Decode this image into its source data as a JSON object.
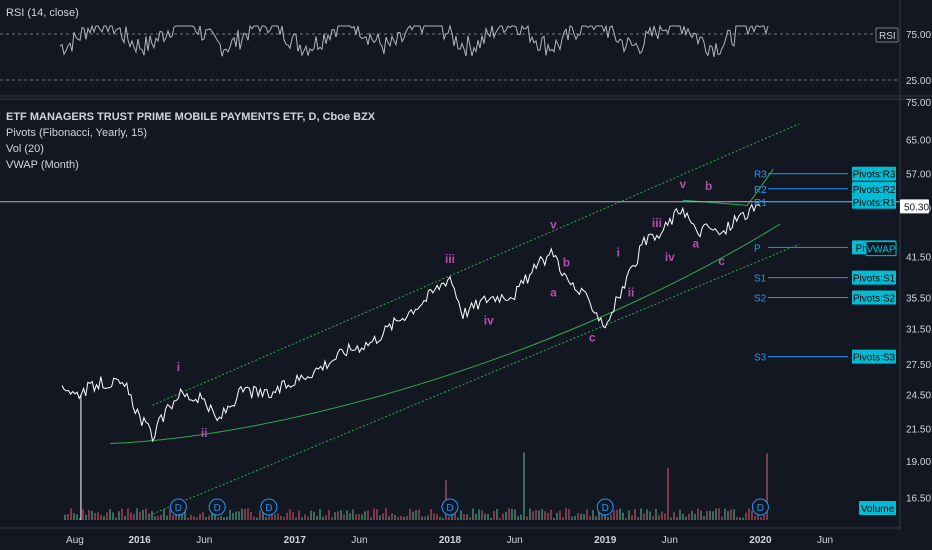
{
  "chart_data": {
    "type": "line",
    "title": "ETF MANAGERS TRUST PRIME MOBILE PAYMENTS ETF, D, Cboe BZX",
    "indicators": [
      "Pivots (Fibonacci, Yearly, 15)",
      "Vol (20)",
      "VWAP (Month)"
    ],
    "x_ticks": [
      "Aug",
      "2016",
      "Jun",
      "2017",
      "Jun",
      "2018",
      "Jun",
      "2019",
      "Jun",
      "2020",
      "Jun"
    ],
    "y_ticks": [
      "75.00",
      "65.00",
      "57.00",
      "50.00",
      "41.50",
      "35.50",
      "31.50",
      "27.50",
      "24.50",
      "21.50",
      "19.00",
      "16.50"
    ],
    "last_price": "50.30",
    "ylim": [
      15.5,
      75
    ],
    "y_scale": "log",
    "price_series": {
      "name": "",
      "x": [
        "2015-07",
        "2015-08",
        "2015-10",
        "2015-11",
        "2015-12",
        "2016-01",
        "2016-02",
        "2016-04",
        "2016-06",
        "2016-07",
        "2016-09",
        "2016-11",
        "2017-01",
        "2017-03",
        "2017-05",
        "2017-07",
        "2017-09",
        "2017-11",
        "2018-01",
        "2018-02",
        "2018-04",
        "2018-06",
        "2018-08",
        "2018-09",
        "2018-10",
        "2018-12",
        "2019-01",
        "2019-03",
        "2019-04",
        "2019-05",
        "2019-07",
        "2019-08",
        "2019-09",
        "2019-10",
        "2019-11",
        "2020-01"
      ],
      "values": [
        25.6,
        24.5,
        25.6,
        25.6,
        25.0,
        22.5,
        20.9,
        24.6,
        23.9,
        22.1,
        24.9,
        24.4,
        25.8,
        27.2,
        29.0,
        30.0,
        32.6,
        35.1,
        38.5,
        33.4,
        35.5,
        36.0,
        40.5,
        42.3,
        38.0,
        34.5,
        31.8,
        39.0,
        43.8,
        44.5,
        50.3,
        45.5,
        46.5,
        45.0,
        47.8,
        50.3
      ]
    },
    "vwap": {
      "name": "VWAP",
      "value": 42.8
    },
    "pivots": [
      {
        "label": "R3",
        "value": 57.0,
        "tag": "Pivots:R3"
      },
      {
        "label": "R2",
        "value": 53.8,
        "tag": "Pivots:R2"
      },
      {
        "label": "R1",
        "value": 51.2,
        "tag": "Pivots:R1"
      },
      {
        "label": "P",
        "value": 43.0,
        "tag": "Pivots:P"
      },
      {
        "label": "S1",
        "value": 38.3,
        "tag": "Pivots:S1"
      },
      {
        "label": "S2",
        "value": 35.5,
        "tag": "Pivots:S2"
      },
      {
        "label": "S3",
        "value": 28.3,
        "tag": "Pivots:S3"
      }
    ],
    "wave_labels": [
      {
        "text": "i",
        "x": "2016-04",
        "y": 26.8
      },
      {
        "text": "ii",
        "x": "2016-06",
        "y": 20.8
      },
      {
        "text": "iii",
        "x": "2018-01",
        "y": 40.5
      },
      {
        "text": "iv",
        "x": "2018-04",
        "y": 32.0
      },
      {
        "text": "v",
        "x": "2018-09",
        "y": 46.2
      },
      {
        "text": "b",
        "x": "2018-10",
        "y": 40.0
      },
      {
        "text": "a",
        "x": "2018-09",
        "y": 35.6
      },
      {
        "text": "c",
        "x": "2018-12",
        "y": 30.0
      },
      {
        "text": "i",
        "x": "2019-02",
        "y": 41.5
      },
      {
        "text": "ii",
        "x": "2019-03",
        "y": 35.6
      },
      {
        "text": "iii",
        "x": "2019-05",
        "y": 46.5
      },
      {
        "text": "iv",
        "x": "2019-06",
        "y": 40.8
      },
      {
        "text": "v",
        "x": "2019-07",
        "y": 54.0
      },
      {
        "text": "b",
        "x": "2019-09",
        "y": 53.6
      },
      {
        "text": "a",
        "x": "2019-08",
        "y": 43.0
      },
      {
        "text": "c",
        "x": "2019-10",
        "y": 40.2
      }
    ],
    "dividends": [
      "2016-04",
      "2016-07",
      "2016-11",
      "2018-01",
      "2019-01",
      "2020-01"
    ],
    "dividend_label": "D",
    "rsi": {
      "title": "RSI (14, close)",
      "tag": "RSI",
      "upper": "75.00",
      "lower": "25.00"
    },
    "volume_tag": "Volume"
  },
  "ui": {
    "bg": "#131722",
    "price_color": "#ffffff",
    "wave_color": "#b34fa8",
    "pivot_color": "#2196f3",
    "tag_color": "#00bcd4",
    "channel_color": "#2eab4a"
  }
}
